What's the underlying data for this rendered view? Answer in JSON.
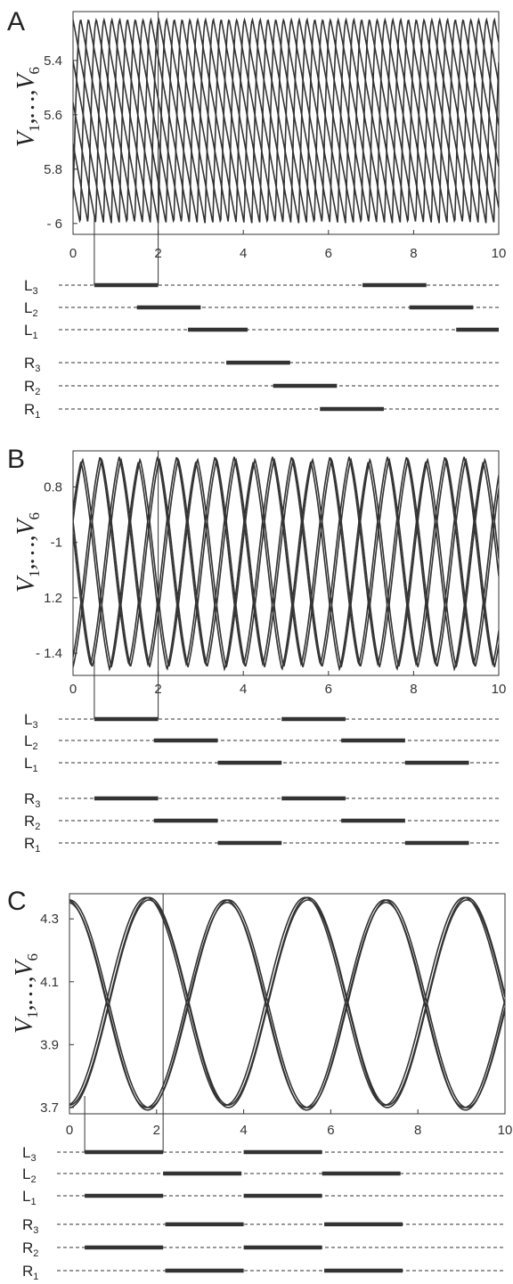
{
  "panels": [
    {
      "letter": "A",
      "ylabel": {
        "main": "V",
        "first": "1",
        "sep": ",…,",
        "last": "6"
      },
      "xlim": [
        0,
        10
      ],
      "ylim_top": -5.22,
      "ylim_bottom": -6.04,
      "xticks": [
        0,
        2,
        4,
        6,
        8,
        10
      ],
      "xtick_labels": [
        "0",
        "2",
        "4",
        "6",
        "8",
        "10"
      ],
      "yticks": [
        -5.4,
        -5.6,
        -5.8,
        -6.0
      ],
      "ytick_labels": [
        "5.4",
        "5.6",
        "5.8",
        "- 6"
      ],
      "bracket": [
        0.5,
        2.0
      ],
      "rows": [
        {
          "letter": "L",
          "sub": "3",
          "bars": [
            [
              0.5,
              2.0
            ],
            [
              6.8,
              8.3
            ]
          ]
        },
        {
          "letter": "L",
          "sub": "2",
          "bars": [
            [
              1.5,
              3.0
            ],
            [
              7.9,
              9.4
            ]
          ]
        },
        {
          "letter": "L",
          "sub": "1",
          "bars": [
            [
              2.7,
              4.1
            ],
            [
              9.0,
              10.0
            ]
          ]
        },
        {
          "letter": "R",
          "sub": "3",
          "bars": [
            [
              3.6,
              5.1
            ]
          ]
        },
        {
          "letter": "R",
          "sub": "2",
          "bars": [
            [
              4.7,
              6.2
            ]
          ]
        },
        {
          "letter": "R",
          "sub": "1",
          "bars": [
            [
              5.8,
              7.3
            ]
          ]
        }
      ]
    },
    {
      "letter": "B",
      "ylabel": {
        "main": "V",
        "first": "1",
        "sep": ",…,",
        "last": "6"
      },
      "xlim": [
        0,
        10
      ],
      "ylim_top": -0.67,
      "ylim_bottom": -1.48,
      "xticks": [
        0,
        2,
        4,
        6,
        8,
        10
      ],
      "xtick_labels": [
        "0",
        "2",
        "4",
        "6",
        "8",
        "10"
      ],
      "yticks": [
        -0.8,
        -1.0,
        -1.2,
        -1.4
      ],
      "ytick_labels": [
        "0.8",
        "-1",
        "1.2",
        "- 1.4"
      ],
      "bracket": [
        0.5,
        2.0
      ],
      "rows": [
        {
          "letter": "L",
          "sub": "3",
          "bars": [
            [
              0.5,
              2.0
            ],
            [
              4.9,
              6.4
            ]
          ]
        },
        {
          "letter": "L",
          "sub": "2",
          "bars": [
            [
              1.9,
              3.4
            ],
            [
              6.3,
              7.8
            ]
          ]
        },
        {
          "letter": "L",
          "sub": "1",
          "bars": [
            [
              3.4,
              4.9
            ],
            [
              7.8,
              9.3
            ]
          ]
        },
        {
          "letter": "R",
          "sub": "3",
          "bars": [
            [
              0.5,
              2.0
            ],
            [
              4.9,
              6.4
            ]
          ]
        },
        {
          "letter": "R",
          "sub": "2",
          "bars": [
            [
              1.9,
              3.4
            ],
            [
              6.3,
              7.8
            ]
          ]
        },
        {
          "letter": "R",
          "sub": "1",
          "bars": [
            [
              3.4,
              4.9
            ],
            [
              7.8,
              9.3
            ]
          ]
        }
      ]
    },
    {
      "letter": "C",
      "ylabel": {
        "main": "V",
        "first": "1",
        "sep": ",…,",
        "last": "6"
      },
      "xlim": [
        0,
        10
      ],
      "ylim_top": 4.38,
      "ylim_bottom": 3.68,
      "xticks": [
        0,
        2,
        4,
        6,
        8,
        10
      ],
      "xtick_labels": [
        "0",
        "2",
        "4",
        "6",
        "8",
        "10"
      ],
      "yticks": [
        4.3,
        4.1,
        3.9,
        3.7
      ],
      "ytick_labels": [
        "4.3",
        "4.1",
        "3.9",
        "3.7"
      ],
      "bracket": [
        0.35,
        2.15
      ],
      "rows": [
        {
          "letter": "L",
          "sub": "3",
          "bars": [
            [
              0.35,
              2.15
            ],
            [
              4.0,
              5.8
            ]
          ]
        },
        {
          "letter": "L",
          "sub": "2",
          "bars": [
            [
              2.15,
              3.95
            ],
            [
              5.8,
              7.6
            ]
          ]
        },
        {
          "letter": "L",
          "sub": "1",
          "bars": [
            [
              0.35,
              2.15
            ],
            [
              4.0,
              5.8
            ]
          ]
        },
        {
          "letter": "R",
          "sub": "3",
          "bars": [
            [
              2.2,
              4.0
            ],
            [
              5.85,
              7.65
            ]
          ]
        },
        {
          "letter": "R",
          "sub": "2",
          "bars": [
            [
              0.35,
              2.15
            ],
            [
              4.0,
              5.8
            ]
          ]
        },
        {
          "letter": "R",
          "sub": "1",
          "bars": [
            [
              2.2,
              4.0
            ],
            [
              5.85,
              7.65
            ]
          ]
        }
      ]
    }
  ],
  "chart_data": [
    {
      "type": "line",
      "panel": "A",
      "ylabel": "V1,…,V6",
      "xlim": [
        0,
        10
      ],
      "ylim": [
        -6.04,
        -5.22
      ],
      "waveform": "relaxation (slow linear decline, fast rise)",
      "period": 1.1,
      "amplitude_range": [
        -6.0,
        -5.25
      ],
      "series": [
        {
          "name": "V1",
          "phase_offset": 0.0
        },
        {
          "name": "V2",
          "phase_offset": 0.183
        },
        {
          "name": "V3",
          "phase_offset": 0.367
        },
        {
          "name": "V4",
          "phase_offset": 0.55
        },
        {
          "name": "V5",
          "phase_offset": 0.733
        },
        {
          "name": "V6",
          "phase_offset": 0.917
        }
      ]
    },
    {
      "type": "line",
      "panel": "B",
      "ylabel": "V1,…,V6",
      "xlim": [
        0,
        10
      ],
      "ylim": [
        -1.48,
        -0.67
      ],
      "waveform": "rounded triangular",
      "period": 1.35,
      "amplitude_range": [
        -1.45,
        -0.7
      ],
      "series": [
        {
          "name": "V1",
          "phase_offset": 0.0
        },
        {
          "name": "V2",
          "phase_offset": 0.45
        },
        {
          "name": "V3",
          "phase_offset": 0.9
        },
        {
          "name": "V4",
          "phase_offset": 0.0
        },
        {
          "name": "V5",
          "phase_offset": 0.45
        },
        {
          "name": "V6",
          "phase_offset": 0.9
        }
      ]
    },
    {
      "type": "line",
      "panel": "C",
      "ylabel": "V1,…,V6",
      "xlim": [
        0,
        10
      ],
      "ylim": [
        3.68,
        4.38
      ],
      "waveform": "sinusoidal, two antiphase groups",
      "period": 3.65,
      "amplitude_range": [
        3.7,
        4.36
      ],
      "series": [
        {
          "name": "V1",
          "phase_offset": 0.0
        },
        {
          "name": "V2",
          "phase_offset": 1.825
        },
        {
          "name": "V3",
          "phase_offset": 0.0
        },
        {
          "name": "V4",
          "phase_offset": 1.825
        },
        {
          "name": "V5",
          "phase_offset": 0.0
        },
        {
          "name": "V6",
          "phase_offset": 1.825
        }
      ]
    }
  ]
}
